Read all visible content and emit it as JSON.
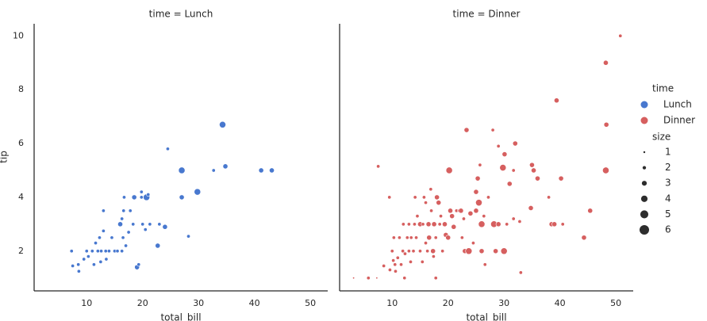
{
  "chart_data": [
    {
      "type": "scatter",
      "title": "time = Lunch",
      "xlabel": "total_bill",
      "ylabel": "tip",
      "xlim": [
        0.6,
        53.1
      ],
      "ylim": [
        0.52,
        10.45
      ],
      "xticks": [
        10,
        20,
        30,
        40,
        50
      ],
      "yticks": [
        2,
        4,
        6,
        8,
        10
      ],
      "series": [
        {
          "name": "Lunch",
          "color": "#4878cf",
          "x": [
            7.3,
            7.5,
            8.5,
            8.6,
            9.5,
            10,
            10.3,
            11,
            11.3,
            11.6,
            12,
            12.3,
            12.5,
            12.6,
            13,
            13,
            13.4,
            13.5,
            14,
            14.5,
            15,
            15.5,
            16,
            16.3,
            16.3,
            16.5,
            16.6,
            16.7,
            17,
            17.5,
            17.8,
            18.3,
            18.5,
            19,
            19.3,
            19.8,
            19.8,
            20,
            20.5,
            20.7,
            21,
            21.3,
            22.7,
            23,
            24,
            24.5,
            27,
            27,
            28.2,
            29.8,
            32.7,
            34.3,
            34.8,
            41.2,
            43.1
          ],
          "values": [
            2,
            1.45,
            1.5,
            1.25,
            1.7,
            2,
            1.8,
            2,
            1.5,
            2.3,
            2,
            2.5,
            1.6,
            2,
            2.75,
            3.5,
            2,
            1.7,
            2,
            2.5,
            2,
            2,
            3,
            2,
            3.2,
            2.5,
            3.5,
            4,
            2.2,
            2.7,
            3.5,
            3,
            4,
            1.4,
            1.5,
            4,
            4.2,
            3,
            2.8,
            4,
            4.1,
            3,
            2.2,
            3,
            2.9,
            5.8,
            5,
            4,
            2.55,
            4.2,
            5,
            6.7,
            5.15,
            5,
            5
          ],
          "sizes": [
            2,
            2,
            2,
            2,
            2,
            2,
            2,
            2,
            2,
            2,
            2,
            2,
            2,
            2,
            2,
            2,
            2,
            2,
            2,
            2,
            2,
            2,
            3,
            2,
            2,
            2,
            2,
            2,
            2,
            2,
            2,
            2,
            3,
            3,
            2,
            2,
            2,
            2,
            2,
            4,
            2,
            2,
            3,
            2,
            3,
            2,
            4,
            3,
            2,
            4,
            2,
            4,
            3,
            3,
            3
          ]
        }
      ]
    },
    {
      "type": "scatter",
      "title": "time = Dinner",
      "xlabel": "total_bill",
      "xlim": [
        0.6,
        53.1
      ],
      "ylim": [
        0.52,
        10.45
      ],
      "xticks": [
        10,
        20,
        30,
        40,
        50
      ],
      "yticks": [
        2,
        4,
        6,
        8,
        10
      ],
      "series": [
        {
          "name": "Dinner",
          "color": "#d65f5f",
          "x": [
            3.1,
            5.75,
            7.25,
            7.5,
            8.5,
            9.5,
            9.6,
            10,
            10.2,
            10.3,
            10.5,
            10.6,
            11,
            11.3,
            11.6,
            11.9,
            12,
            12.2,
            12.3,
            12.7,
            13,
            13,
            13.3,
            13.4,
            13.8,
            14,
            14.1,
            14.3,
            14.5,
            14.8,
            15,
            15,
            15.4,
            15.5,
            15.7,
            16,
            16,
            16.3,
            16.5,
            16.6,
            16.9,
            17,
            17.3,
            17.4,
            17.5,
            17.8,
            17.8,
            18,
            18.3,
            18.5,
            18.7,
            19,
            19.4,
            19.6,
            20,
            20.2,
            20.4,
            20.7,
            21,
            21.5,
            22,
            22.3,
            22.5,
            22.8,
            23,
            23.3,
            23.7,
            24,
            24.5,
            25,
            25,
            25.3,
            25.5,
            25.7,
            26,
            26,
            26.4,
            26.6,
            27.2,
            28,
            28.2,
            28.5,
            29,
            29,
            29.8,
            30,
            30.1,
            30.5,
            31,
            31.7,
            31.7,
            32,
            33,
            32.8,
            34.8,
            35,
            35.3,
            36,
            38,
            38.5,
            39,
            39.4,
            40.2,
            40.5,
            44.3,
            45.4,
            48.2,
            48.3,
            48.2,
            50.8
          ],
          "values": [
            1,
            1,
            1,
            5.15,
            1.45,
            4,
            1.3,
            2,
            1.65,
            2.5,
            1.5,
            1.25,
            1.75,
            2.5,
            1.5,
            2,
            3,
            1,
            1.9,
            2.5,
            2,
            3,
            1.6,
            2.5,
            2,
            3,
            4,
            2.5,
            3.3,
            3,
            2,
            3,
            1.6,
            3,
            4,
            2.3,
            3.8,
            2,
            3,
            2.5,
            4.3,
            3.5,
            2,
            1.8,
            3,
            1,
            2.5,
            4,
            3.8,
            3,
            3.3,
            2,
            3,
            2.6,
            2.5,
            5,
            3.5,
            3.3,
            2.9,
            3.5,
            3.5,
            3.5,
            2.5,
            3.2,
            2,
            6.5,
            2,
            3.4,
            2.3,
            3.5,
            4.2,
            4.7,
            3.8,
            5.2,
            2,
            3,
            3.3,
            1.5,
            4,
            6.5,
            3,
            2,
            5.9,
            3,
            5.1,
            2,
            5.6,
            3,
            4.5,
            5,
            3.2,
            6,
            1.2,
            3.1,
            3.6,
            5.2,
            5,
            4.7,
            4,
            3,
            3,
            7.6,
            4.7,
            3,
            2.5,
            3.5,
            9,
            6.7,
            5,
            10
          ],
          "sizes": [
            1,
            2,
            1,
            2,
            2,
            2,
            2,
            2,
            2,
            2,
            2,
            2,
            2,
            2,
            2,
            2,
            2,
            2,
            2,
            2,
            2,
            2,
            2,
            2,
            2,
            2,
            2,
            2,
            2,
            2,
            2,
            3,
            2,
            2,
            2,
            2,
            2,
            2,
            3,
            3,
            2,
            2,
            3,
            2,
            3,
            2,
            2,
            3,
            3,
            2,
            2,
            2,
            3,
            3,
            3,
            4,
            3,
            3,
            3,
            2,
            2,
            3,
            2,
            2,
            3,
            3,
            4,
            3,
            2,
            3,
            3,
            3,
            4,
            2,
            3,
            4,
            2,
            2,
            2,
            2,
            4,
            3,
            2,
            3,
            4,
            4,
            3,
            2,
            3,
            2,
            2,
            3,
            2,
            2,
            3,
            3,
            3,
            3,
            2,
            3,
            3,
            3,
            3,
            2,
            3,
            3,
            3,
            3,
            4,
            2
          ]
        }
      ]
    }
  ],
  "legend": {
    "hue_title": "time",
    "size_title": "size",
    "sizes": [
      1,
      2,
      3,
      4,
      5,
      6
    ]
  }
}
